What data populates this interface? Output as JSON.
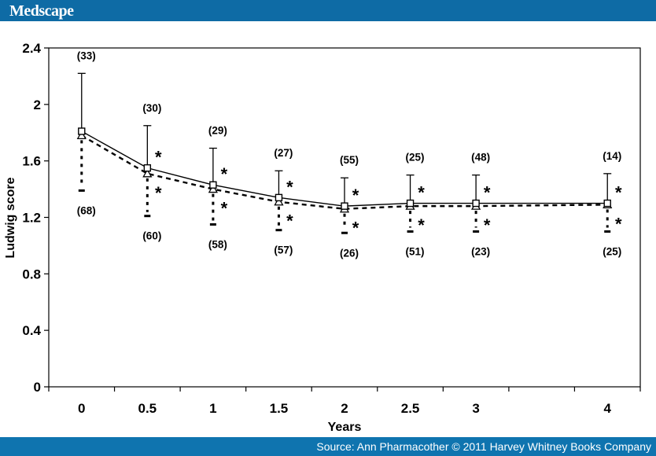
{
  "header": {
    "logo": "Medscape"
  },
  "footer": {
    "source": "Source: Ann Pharmacother © 2011 Harvey Whitney Books Company"
  },
  "theme": {
    "header_bg": "#0e6ba5",
    "footer_bg": "#0f74af",
    "chart_ink": "#000000",
    "chart_bg": "#ffffff"
  },
  "chart_data": {
    "type": "line",
    "title": "",
    "xlabel": "Years",
    "ylabel": "Ludwig score",
    "x_categories": [
      "0",
      "0.5",
      "1",
      "1.5",
      "2",
      "2.5",
      "3",
      "4"
    ],
    "x_slots": [
      0,
      1,
      2,
      3,
      4,
      5,
      6,
      8
    ],
    "n_x_slots": 9,
    "y_tick_labels": [
      "0",
      "0.4",
      "0.8",
      "1.2",
      "1.6",
      "2",
      "2.4"
    ],
    "y_tick_values": [
      0,
      0.4,
      0.8,
      1.2,
      1.6,
      2.0,
      2.4
    ],
    "ylim": [
      0,
      2.4
    ],
    "grid": false,
    "legend": "none",
    "annotation_format": "(n)",
    "significance_symbol": "*",
    "series": [
      {
        "name": "solid-squares",
        "marker": "square",
        "line_style": "solid",
        "error_direction": "up",
        "values": [
          1.81,
          1.55,
          1.43,
          1.34,
          1.28,
          1.3,
          1.3,
          1.3
        ],
        "error_limit": [
          2.22,
          1.85,
          1.69,
          1.53,
          1.48,
          1.5,
          1.5,
          1.51
        ],
        "n_counts": [
          33,
          30,
          29,
          27,
          55,
          25,
          48,
          14
        ],
        "n_label_position": "above",
        "significant": [
          false,
          true,
          true,
          true,
          true,
          true,
          true,
          true
        ]
      },
      {
        "name": "dashed-triangles",
        "marker": "triangle",
        "line_style": "dashed",
        "error_direction": "down",
        "values": [
          1.78,
          1.51,
          1.4,
          1.31,
          1.26,
          1.28,
          1.28,
          1.29
        ],
        "error_limit": [
          1.39,
          1.21,
          1.15,
          1.11,
          1.09,
          1.1,
          1.1,
          1.1
        ],
        "n_counts": [
          68,
          60,
          58,
          57,
          26,
          51,
          23,
          25
        ],
        "n_label_position": "below",
        "significant": [
          false,
          true,
          true,
          true,
          true,
          true,
          true,
          true
        ]
      }
    ]
  }
}
